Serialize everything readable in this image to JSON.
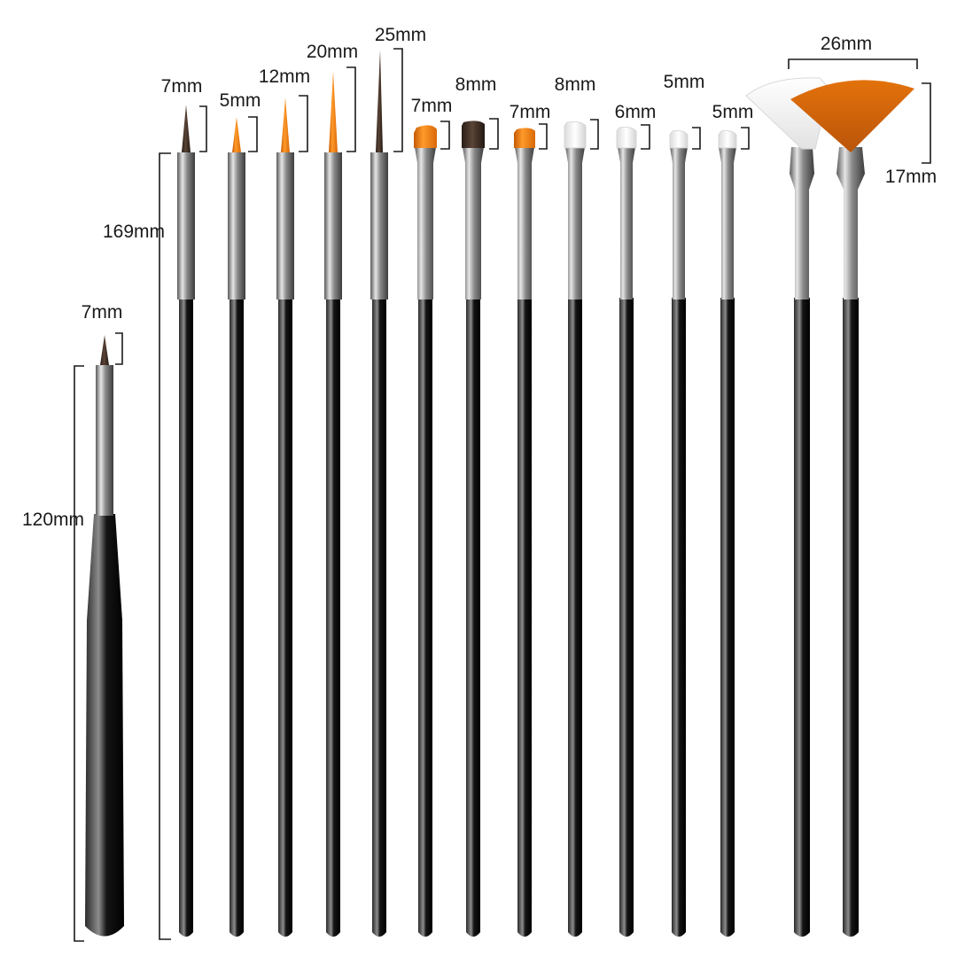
{
  "image": {
    "background": "#ffffff",
    "palette": {
      "handle": "#111111",
      "ferrule": "#9a9a9a",
      "bristle_orange": "#e8740e",
      "bristle_brown": "#3a2a22",
      "bristle_white": "#f4f4f4"
    }
  },
  "labels": {
    "short_brush_tip": "7mm",
    "short_brush_length": "120mm",
    "long_brush_length": "169mm",
    "liner_1": "7mm",
    "liner_2": "5mm",
    "liner_3": "12mm",
    "liner_4": "20mm",
    "liner_5": "25mm",
    "flat_1": "7mm",
    "flat_2": "8mm",
    "flat_3": "7mm",
    "flat_4": "8mm",
    "flat_5": "6mm",
    "flat_6": "5mm",
    "flat_7": "5mm",
    "fan_width": "26mm",
    "fan_height": "17mm"
  },
  "brushes": [
    {
      "name": "short-liner-brush",
      "bristle": "bristle_brown"
    },
    {
      "name": "striper-brush-1",
      "bristle": "bristle_brown"
    },
    {
      "name": "striper-brush-2",
      "bristle": "bristle_orange"
    },
    {
      "name": "striper-brush-3",
      "bristle": "bristle_orange"
    },
    {
      "name": "striper-brush-4",
      "bristle": "bristle_orange"
    },
    {
      "name": "striper-brush-5",
      "bristle": "bristle_brown"
    },
    {
      "name": "flat-brush-1",
      "bristle": "bristle_orange"
    },
    {
      "name": "flat-brush-2",
      "bristle": "bristle_brown"
    },
    {
      "name": "flat-brush-3",
      "bristle": "bristle_orange"
    },
    {
      "name": "flat-brush-4",
      "bristle": "bristle_white"
    },
    {
      "name": "flat-brush-5",
      "bristle": "bristle_white"
    },
    {
      "name": "flat-brush-6",
      "bristle": "bristle_white"
    },
    {
      "name": "flat-brush-7",
      "bristle": "bristle_white"
    },
    {
      "name": "fan-brush-1",
      "bristle": "bristle_white"
    },
    {
      "name": "fan-brush-2",
      "bristle": "bristle_orange"
    }
  ]
}
